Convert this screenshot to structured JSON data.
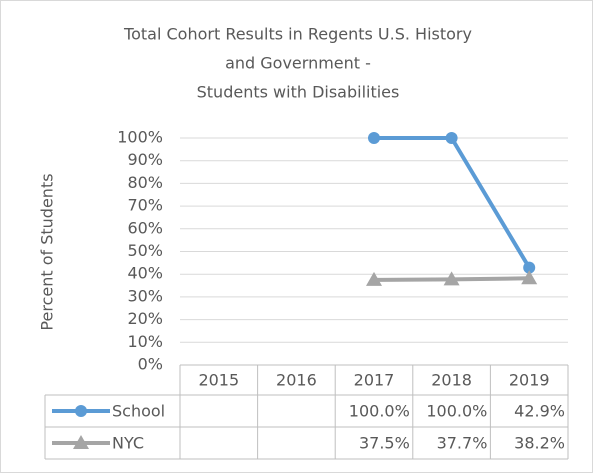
{
  "chart_data": {
    "type": "line",
    "title": [
      "Total Cohort Results in Regents U.S. History",
      "and Government -",
      "Students with Disabilities"
    ],
    "y_axis_label": "Percent of Students",
    "categories": [
      "2015",
      "2016",
      "2017",
      "2018",
      "2019"
    ],
    "series": [
      {
        "name": "School",
        "color": "#5b9bd5",
        "marker": "circle",
        "values": [
          null,
          null,
          100,
          100,
          42.9
        ],
        "value_labels": [
          null,
          null,
          "100.0%",
          "100.0%",
          "42.9%"
        ]
      },
      {
        "name": "NYC",
        "color": "#a5a5a5",
        "marker": "triangle",
        "values": [
          null,
          null,
          37.5,
          37.7,
          38.2
        ],
        "value_labels": [
          null,
          null,
          "37.5%",
          "37.7%",
          "38.2%"
        ]
      }
    ],
    "ylim": [
      0,
      100
    ],
    "yticks": [
      {
        "value": 0,
        "label": "0%"
      },
      {
        "value": 10,
        "label": "10%"
      },
      {
        "value": 20,
        "label": "20%"
      },
      {
        "value": 30,
        "label": "30%"
      },
      {
        "value": 40,
        "label": "40%"
      },
      {
        "value": 50,
        "label": "50%"
      },
      {
        "value": 60,
        "label": "60%"
      },
      {
        "value": 70,
        "label": "70%"
      },
      {
        "value": 80,
        "label": "80%"
      },
      {
        "value": 90,
        "label": "90%"
      },
      {
        "value": 100,
        "label": "100%"
      }
    ],
    "grid": true,
    "data_table": true
  }
}
